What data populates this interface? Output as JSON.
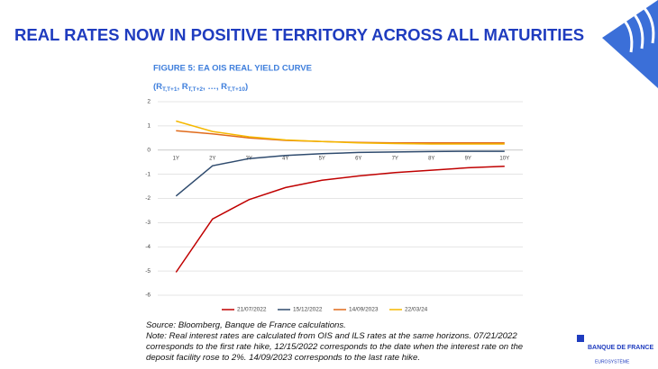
{
  "slide": {
    "title": "REAL RATES NOW IN POSITIVE TERRITORY ACROSS ALL MATURITIES",
    "source": "Source: Bloomberg, Banque de France calculations.",
    "note": "Note: Real interest rates are calculated from OIS and ILS rates at the same horizons. 07/21/2022 corresponds to the first rate hike, 12/15/2022 corresponds to the date when the interest rate on the deposit facility rose to 2%. 14/09/2023 corresponds to the last rate hike.",
    "logo_name": "BANQUE DE FRANCE",
    "logo_sub": "EUROSYSTÈME"
  },
  "chart_data": {
    "type": "line",
    "title": "FIGURE 5: EA OIS REAL YIELD CURVE",
    "subtitle": [
      {
        "text": "(R"
      },
      {
        "text": "T,T+1",
        "sub": true
      },
      {
        "text": ", R"
      },
      {
        "text": "T,T+2",
        "sub": true
      },
      {
        "text": ", …, R"
      },
      {
        "text": "T,T+10",
        "sub": true
      },
      {
        "text": ")"
      }
    ],
    "categories": [
      "1Y",
      "2Y",
      "3Y",
      "4Y",
      "5Y",
      "6Y",
      "7Y",
      "8Y",
      "9Y",
      "10Y"
    ],
    "series": [
      {
        "name": "21/07/2022",
        "color": "#c00000",
        "values": [
          -5.05,
          -2.85,
          -2.05,
          -1.55,
          -1.25,
          -1.07,
          -0.93,
          -0.83,
          -0.73,
          -0.67
        ]
      },
      {
        "name": "15/12/2022",
        "color": "#2f4b6e",
        "values": [
          -1.9,
          -0.65,
          -0.35,
          -0.22,
          -0.15,
          -0.1,
          -0.08,
          -0.06,
          -0.05,
          -0.05
        ]
      },
      {
        "name": "14/09/2023",
        "color": "#e06a1a",
        "values": [
          0.8,
          0.67,
          0.5,
          0.4,
          0.35,
          0.32,
          0.3,
          0.3,
          0.3,
          0.3
        ]
      },
      {
        "name": "22/03/24",
        "color": "#f5b800",
        "values": [
          1.2,
          0.77,
          0.55,
          0.42,
          0.35,
          0.3,
          0.27,
          0.25,
          0.25,
          0.25
        ]
      }
    ],
    "ylim": [
      -6,
      2
    ],
    "yticks": [
      -6,
      -5,
      -4,
      -3,
      -2,
      -1,
      0,
      1,
      2
    ],
    "grid": true
  }
}
